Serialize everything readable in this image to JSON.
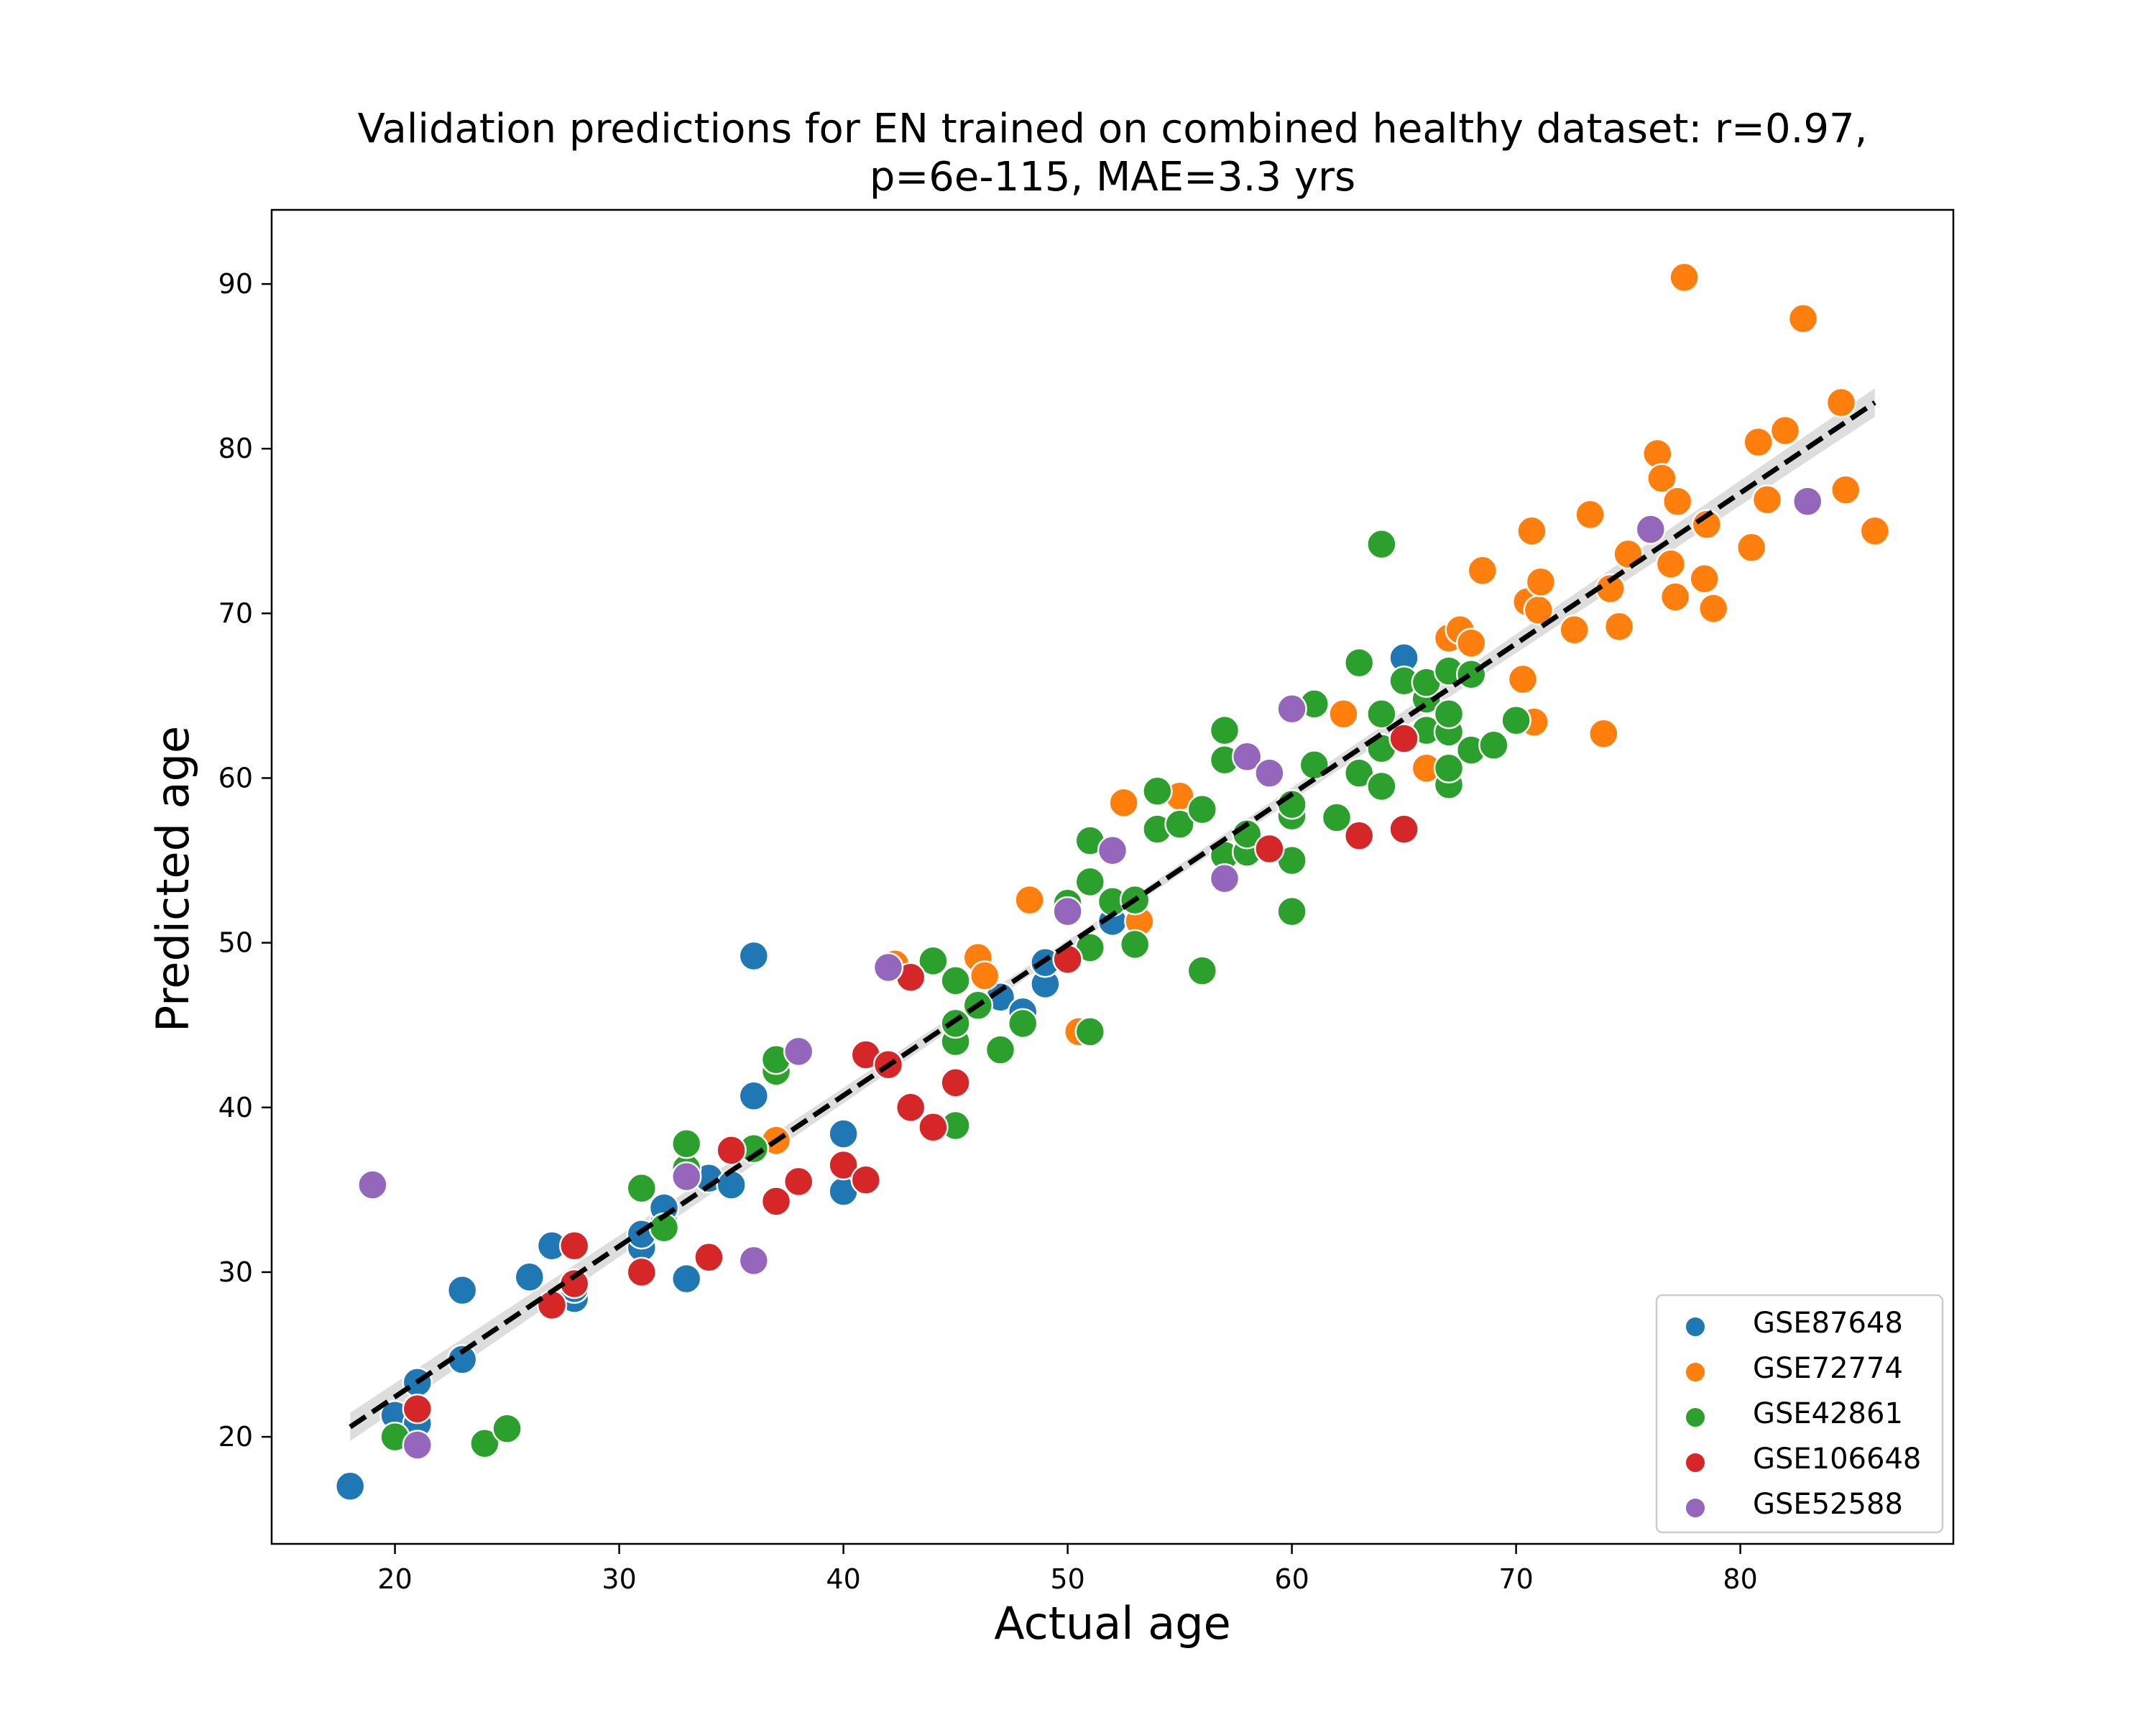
{
  "chart_data": {
    "type": "scatter",
    "title": "Validation predictions for EN trained on combined healthy dataset: r=0.97,",
    "subtitle": "p=6e-115, MAE=3.3 yrs",
    "xlabel": "Actual age",
    "ylabel": "Predicted age",
    "xlim": [
      14.5,
      89.5
    ],
    "ylim": [
      13.5,
      94.5
    ],
    "xticks": [
      20,
      30,
      40,
      50,
      60,
      70,
      80
    ],
    "yticks": [
      20,
      30,
      40,
      50,
      60,
      70,
      80,
      90
    ],
    "legend_position": "bottom-right",
    "grid": false,
    "regression_line": {
      "x": [
        18,
        86
      ],
      "y": [
        20.6,
        82.8
      ],
      "style": "dashed",
      "color": "#000000",
      "confidence_band_color": "#d9d9d9"
    },
    "series": [
      {
        "name": "GSE87648",
        "color": "#1f77b4",
        "points": [
          [
            18,
            17.0
          ],
          [
            20,
            21.3
          ],
          [
            21,
            20.8
          ],
          [
            21,
            23.3
          ],
          [
            23,
            24.7
          ],
          [
            23,
            28.9
          ],
          [
            26,
            29.7
          ],
          [
            27,
            31.6
          ],
          [
            28,
            28.4
          ],
          [
            28,
            29.0
          ],
          [
            31,
            31.5
          ],
          [
            31,
            32.3
          ],
          [
            32,
            33.0
          ],
          [
            32,
            33.9
          ],
          [
            33,
            29.6
          ],
          [
            34,
            35.7
          ],
          [
            35,
            35.3
          ],
          [
            36,
            40.7
          ],
          [
            36,
            49.2
          ],
          [
            40,
            34.9
          ],
          [
            40,
            38.4
          ],
          [
            47,
            46.7
          ],
          [
            48,
            45.8
          ],
          [
            49,
            47.5
          ],
          [
            49,
            48.8
          ],
          [
            52,
            51.3
          ],
          [
            65,
            67.3
          ],
          [
            70,
            63.4
          ]
        ]
      },
      {
        "name": "GSE72774",
        "color": "#ff7f0e",
        "points": [
          [
            37,
            38.0
          ],
          [
            42.3,
            48.7
          ],
          [
            46,
            49.1
          ],
          [
            46.3,
            48.0
          ],
          [
            48.3,
            52.6
          ],
          [
            50.5,
            44.6
          ],
          [
            52.5,
            58.5
          ],
          [
            53.2,
            51.3
          ],
          [
            55,
            58.9
          ],
          [
            62.3,
            63.9
          ],
          [
            66,
            60.6
          ],
          [
            67,
            68.5
          ],
          [
            67.5,
            69.0
          ],
          [
            68,
            68.2
          ],
          [
            68.5,
            72.6
          ],
          [
            70.3,
            66.0
          ],
          [
            70.5,
            70.7
          ],
          [
            70.7,
            75.0
          ],
          [
            70.8,
            63.4
          ],
          [
            71,
            70.2
          ],
          [
            71.1,
            71.9
          ],
          [
            72.6,
            69.0
          ],
          [
            73.3,
            76.0
          ],
          [
            73.9,
            62.7
          ],
          [
            74.2,
            71.5
          ],
          [
            74.6,
            69.2
          ],
          [
            75,
            73.6
          ],
          [
            76.3,
            79.7
          ],
          [
            76.5,
            78.2
          ],
          [
            76.9,
            73.0
          ],
          [
            77.1,
            71.0
          ],
          [
            77.2,
            76.8
          ],
          [
            77.5,
            90.4
          ],
          [
            78.4,
            72.1
          ],
          [
            78.5,
            75.4
          ],
          [
            78.8,
            70.3
          ],
          [
            80.5,
            74.0
          ],
          [
            80.8,
            80.4
          ],
          [
            81.2,
            76.9
          ],
          [
            82,
            81.1
          ],
          [
            82.8,
            87.9
          ],
          [
            84.5,
            82.8
          ],
          [
            84.7,
            77.5
          ],
          [
            86,
            75.0
          ]
        ]
      },
      {
        "name": "GSE42861",
        "color": "#2ca02c",
        "points": [
          [
            20,
            20.0
          ],
          [
            24,
            19.6
          ],
          [
            25,
            20.5
          ],
          [
            31,
            35.1
          ],
          [
            32,
            32.7
          ],
          [
            33,
            36.3
          ],
          [
            33,
            37.8
          ],
          [
            36,
            37.5
          ],
          [
            37,
            42.2
          ],
          [
            37,
            42.9
          ],
          [
            44,
            48.9
          ],
          [
            45,
            38.9
          ],
          [
            45,
            44.0
          ],
          [
            45,
            45.1
          ],
          [
            45,
            47.7
          ],
          [
            46,
            46.2
          ],
          [
            47,
            43.5
          ],
          [
            48,
            45.1
          ],
          [
            50,
            52.4
          ],
          [
            51,
            44.6
          ],
          [
            51,
            49.7
          ],
          [
            51,
            53.7
          ],
          [
            51,
            56.2
          ],
          [
            52,
            52.5
          ],
          [
            53,
            49.9
          ],
          [
            53,
            52.6
          ],
          [
            54,
            56.9
          ],
          [
            54,
            59.2
          ],
          [
            55,
            57.2
          ],
          [
            56,
            48.3
          ],
          [
            56,
            58.1
          ],
          [
            57,
            55.3
          ],
          [
            57,
            61.1
          ],
          [
            57,
            62.9
          ],
          [
            58,
            55.5
          ],
          [
            58,
            56.6
          ],
          [
            60,
            51.9
          ],
          [
            60,
            55.0
          ],
          [
            60,
            57.7
          ],
          [
            60,
            58.4
          ],
          [
            61,
            60.8
          ],
          [
            61,
            64.5
          ],
          [
            62,
            57.6
          ],
          [
            63,
            60.3
          ],
          [
            63,
            67.0
          ],
          [
            64,
            59.5
          ],
          [
            64,
            61.8
          ],
          [
            64,
            63.9
          ],
          [
            64,
            74.2
          ],
          [
            65,
            65.9
          ],
          [
            66,
            62.9
          ],
          [
            66,
            64.8
          ],
          [
            66,
            65.8
          ],
          [
            67,
            59.6
          ],
          [
            67,
            60.6
          ],
          [
            67,
            62.8
          ],
          [
            67,
            63.9
          ],
          [
            67,
            66.5
          ],
          [
            68,
            61.7
          ],
          [
            68,
            66.3
          ],
          [
            69,
            62.0
          ],
          [
            70,
            63.5
          ]
        ]
      },
      {
        "name": "GSE106648",
        "color": "#d62728",
        "points": [
          [
            21,
            21.7
          ],
          [
            27,
            28.0
          ],
          [
            28,
            29.3
          ],
          [
            28,
            31.6
          ],
          [
            31,
            30.0
          ],
          [
            34,
            30.9
          ],
          [
            35,
            37.4
          ],
          [
            37,
            34.3
          ],
          [
            38,
            35.5
          ],
          [
            40,
            36.5
          ],
          [
            41,
            35.6
          ],
          [
            41,
            43.2
          ],
          [
            42,
            42.6
          ],
          [
            43,
            40.0
          ],
          [
            43,
            47.9
          ],
          [
            44,
            38.8
          ],
          [
            45,
            41.5
          ],
          [
            50,
            49.0
          ],
          [
            59,
            55.7
          ],
          [
            63,
            56.5
          ],
          [
            65,
            56.9
          ],
          [
            65,
            62.4
          ]
        ]
      },
      {
        "name": "GSE52588",
        "color": "#9467bd",
        "points": [
          [
            19,
            35.3
          ],
          [
            21,
            19.5
          ],
          [
            33,
            35.8
          ],
          [
            36,
            30.7
          ],
          [
            38,
            43.4
          ],
          [
            42,
            48.5
          ],
          [
            50,
            51.9
          ],
          [
            52,
            55.6
          ],
          [
            57,
            53.9
          ],
          [
            58,
            61.3
          ],
          [
            59,
            60.3
          ],
          [
            60,
            64.2
          ],
          [
            76,
            75.1
          ],
          [
            83,
            76.8
          ]
        ]
      }
    ]
  }
}
